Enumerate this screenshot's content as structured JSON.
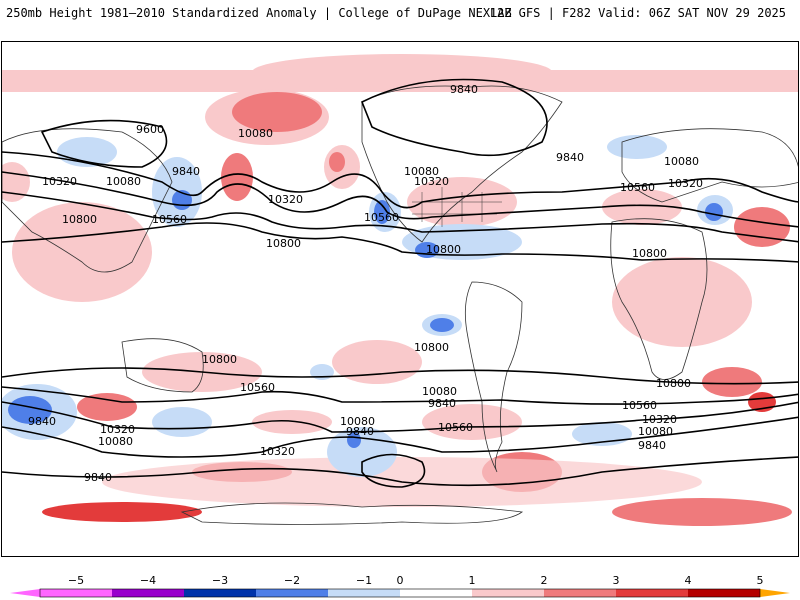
{
  "header": {
    "left_title": "250mb Height 1981–2010 Standardized Anomaly | College of DuPage NEXLAB",
    "right_title": "12Z GFS | F282 Valid: 06Z SAT NOV 29 2025"
  },
  "colors": {
    "neg5": "#ff66ff",
    "neg4": "#9900cc",
    "neg3": "#0033aa",
    "neg2": "#4f7fe8",
    "neg1": "#c6dcf7",
    "zero": "#ffffff",
    "pos1": "#f9c9cb",
    "pos2": "#ef7a7c",
    "pos3": "#e33b3b",
    "pos4": "#b40000",
    "pos5": "#ffa500"
  },
  "colorbar": {
    "ticks": [
      "−5",
      "−4",
      "−3",
      "−2",
      "−1",
      "0",
      "1",
      "2",
      "3",
      "4",
      "5"
    ]
  },
  "contour_labels": [
    "9840",
    "9600",
    "10080",
    "10320",
    "9840",
    "10800",
    "10560",
    "10080",
    "10320",
    "10320",
    "10560",
    "10800",
    "10800",
    "10080",
    "10560",
    "10320",
    "9840",
    "9840",
    "10080",
    "10800",
    "10800",
    "10560",
    "10080",
    "10800",
    "10320",
    "9840",
    "10080",
    "10320",
    "10560",
    "9840",
    "10080",
    "10320",
    "10800",
    "10560",
    "9840",
    "10080",
    "9840"
  ]
}
